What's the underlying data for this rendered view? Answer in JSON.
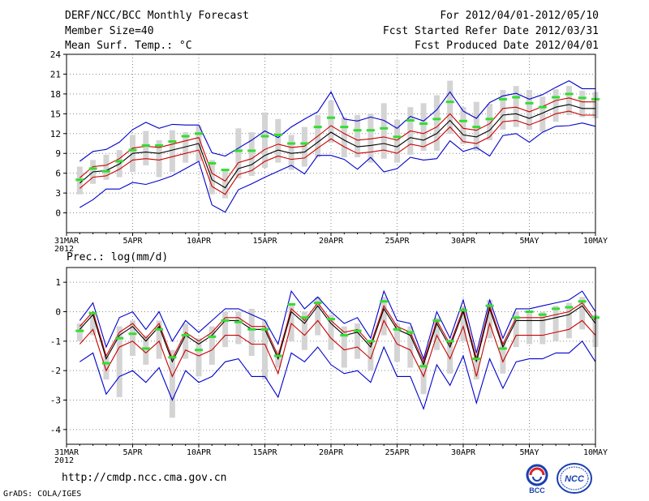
{
  "header": {
    "title": "DERF/NCC/BCC Monthly Forecast",
    "member_size": "Member Size=40",
    "variable": "Mean Surf. Temp.: °C",
    "period": "For 2012/04/01-2012/05/10",
    "started": "Fcst Started Refer Date 2012/03/31",
    "produced": "Fcst Produced Date 2012/04/01"
  },
  "footer": {
    "url": "http://cmdp.ncc.cma.gov.cn",
    "grads": "GrADS: COLA/IGES"
  },
  "logos": {
    "bcc": "BCC",
    "ncc": "NCC"
  },
  "colors": {
    "mean": "#000000",
    "quartile": "#cc0000",
    "extreme": "#0000cc",
    "obs": "#33dd33",
    "spread": "#d4d4d4",
    "grid": "#888888"
  },
  "chart_data": [
    {
      "type": "line",
      "title": "Mean Surf. Temp.: °C",
      "x_ticks": [
        "31MAR",
        "5APR",
        "10APR",
        "15APR",
        "20APR",
        "25APR",
        "30APR",
        "5MAY",
        "10MAY"
      ],
      "x_tick_days": [
        0,
        5,
        10,
        15,
        20,
        25,
        30,
        35,
        40
      ],
      "x_year": "2012",
      "ylim": [
        -3,
        24
      ],
      "yticks": [
        0,
        3,
        6,
        9,
        12,
        15,
        18,
        21,
        24
      ],
      "x": [
        1,
        2,
        3,
        4,
        5,
        6,
        7,
        8,
        9,
        10,
        11,
        12,
        13,
        14,
        15,
        16,
        17,
        18,
        19,
        20,
        21,
        22,
        23,
        24,
        25,
        26,
        27,
        28,
        29,
        30,
        31,
        32,
        33,
        34,
        35,
        36,
        37,
        38,
        39,
        40
      ],
      "series": [
        {
          "name": "mean",
          "values": [
            4.5,
            6.2,
            6.4,
            7.4,
            9.0,
            9.2,
            9.0,
            9.5,
            10.0,
            10.5,
            5.0,
            3.8,
            6.7,
            7.3,
            8.7,
            9.5,
            9.0,
            9.2,
            10.7,
            12.2,
            11.0,
            10.0,
            10.2,
            10.5,
            10.0,
            11.4,
            11.0,
            12.0,
            14.0,
            11.8,
            11.5,
            12.5,
            14.8,
            15.0,
            14.3,
            15.1,
            16.0,
            16.4,
            15.8,
            15.8
          ]
        },
        {
          "name": "upper_quartile",
          "values": [
            5.3,
            7.0,
            7.2,
            8.2,
            9.8,
            10.1,
            9.9,
            10.4,
            10.9,
            11.4,
            6.0,
            4.8,
            7.6,
            8.2,
            9.6,
            10.4,
            9.9,
            10.1,
            11.6,
            13.2,
            12.0,
            11.0,
            11.2,
            11.5,
            11.0,
            12.4,
            12.0,
            13.0,
            15.0,
            12.8,
            12.5,
            13.5,
            15.8,
            16.0,
            15.3,
            16.1,
            17.0,
            17.4,
            16.8,
            16.8
          ]
        },
        {
          "name": "lower_quartile",
          "values": [
            3.7,
            5.4,
            5.6,
            6.6,
            8.0,
            8.2,
            8.0,
            8.5,
            9.0,
            9.5,
            4.0,
            2.8,
            5.8,
            6.4,
            7.8,
            8.6,
            8.1,
            8.3,
            9.8,
            11.2,
            10.0,
            9.0,
            9.2,
            9.5,
            9.0,
            10.4,
            10.0,
            11.0,
            13.0,
            10.8,
            10.5,
            11.5,
            13.8,
            14.0,
            13.3,
            14.1,
            15.0,
            15.4,
            14.8,
            14.8
          ]
        },
        {
          "name": "max",
          "values": [
            7.8,
            9.3,
            9.6,
            10.7,
            12.6,
            13.7,
            12.8,
            13.4,
            13.3,
            13.3,
            9.1,
            8.6,
            9.8,
            11.0,
            12.4,
            11.4,
            13.0,
            14.2,
            15.3,
            18.3,
            14.2,
            13.9,
            14.5,
            14.0,
            12.8,
            14.6,
            13.9,
            15.6,
            18.3,
            15.4,
            14.3,
            16.7,
            17.7,
            18.1,
            17.2,
            17.9,
            19.0,
            20.0,
            18.8,
            18.8
          ]
        },
        {
          "name": "min",
          "values": [
            0.8,
            2.0,
            3.6,
            3.6,
            4.6,
            4.3,
            4.9,
            5.6,
            6.7,
            7.8,
            1.2,
            0.1,
            3.5,
            4.4,
            5.4,
            6.3,
            7.2,
            5.9,
            8.7,
            8.7,
            8.1,
            6.6,
            8.4,
            6.2,
            6.7,
            8.4,
            8.0,
            8.2,
            10.9,
            9.3,
            9.9,
            8.6,
            11.7,
            12.0,
            10.7,
            12.2,
            13.1,
            13.2,
            13.6,
            13.1
          ]
        },
        {
          "name": "observed",
          "values": [
            5.0,
            6.7,
            6.3,
            7.8,
            9.5,
            10.2,
            10.2,
            10.8,
            11.6,
            12.0,
            7.5,
            6.5,
            9.4,
            9.4,
            11.6,
            11.8,
            10.5,
            10.5,
            13.0,
            14.4,
            13.0,
            12.5,
            12.5,
            12.8,
            11.5,
            14.0,
            13.5,
            14.2,
            16.8,
            13.9,
            13.0,
            14.2,
            17.2,
            17.5,
            16.6,
            16.0,
            17.5,
            18.0,
            17.4,
            17.2
          ]
        },
        {
          "name": "spread_top",
          "values": [
            7.0,
            8.0,
            8.8,
            9.5,
            11.8,
            12.4,
            11.0,
            12.5,
            12.2,
            13.2,
            8.0,
            6.4,
            12.8,
            12.2,
            15.2,
            14.2,
            11.8,
            13.0,
            14.8,
            17.0,
            14.5,
            14.8,
            15.0,
            16.6,
            14.1,
            16.0,
            16.6,
            17.8,
            20.0,
            16.0,
            16.8,
            16.5,
            18.6,
            19.2,
            18.6,
            17.6,
            18.7,
            19.2,
            18.5,
            18.3
          ]
        },
        {
          "name": "spread_bottom",
          "values": [
            2.8,
            4.4,
            5.0,
            5.4,
            6.2,
            7.2,
            5.4,
            6.2,
            7.6,
            7.8,
            2.8,
            2.2,
            5.2,
            5.6,
            6.8,
            7.6,
            6.5,
            7.0,
            8.4,
            10.6,
            8.4,
            8.4,
            7.6,
            8.2,
            7.6,
            8.8,
            9.4,
            9.4,
            12.0,
            10.4,
            9.4,
            11.0,
            12.6,
            13.0,
            12.6,
            12.3,
            13.8,
            14.8,
            14.5,
            14.3
          ]
        }
      ]
    },
    {
      "type": "line",
      "title": "Prec.: log(mm/d)",
      "x_ticks": [
        "31MAR",
        "5APR",
        "10APR",
        "15APR",
        "20APR",
        "25APR",
        "30APR",
        "5MAY",
        "10MAY"
      ],
      "x_tick_days": [
        0,
        5,
        10,
        15,
        20,
        25,
        30,
        35,
        40
      ],
      "x_year": "2012",
      "ylim": [
        -4.5,
        1.5
      ],
      "yticks": [
        -4,
        -3,
        -2,
        -1,
        0,
        1
      ],
      "x": [
        1,
        2,
        3,
        4,
        5,
        6,
        7,
        8,
        9,
        10,
        11,
        12,
        13,
        14,
        15,
        16,
        17,
        18,
        19,
        20,
        21,
        22,
        23,
        24,
        25,
        26,
        27,
        28,
        29,
        30,
        31,
        32,
        33,
        34,
        35,
        36,
        37,
        38,
        39,
        40
      ],
      "series": [
        {
          "name": "mean",
          "values": [
            -0.6,
            -0.1,
            -1.6,
            -0.8,
            -0.5,
            -1.0,
            -0.5,
            -1.7,
            -0.8,
            -1.1,
            -0.8,
            -0.3,
            -0.3,
            -0.6,
            -0.6,
            -1.6,
            0.0,
            -0.4,
            0.2,
            -0.4,
            -0.8,
            -0.7,
            -1.2,
            0.1,
            -0.6,
            -0.8,
            -1.8,
            -0.4,
            -1.2,
            0.0,
            -1.7,
            0.1,
            -1.2,
            -0.3,
            -0.3,
            -0.3,
            -0.2,
            -0.1,
            0.2,
            -0.4
          ]
        },
        {
          "name": "upper_quartile",
          "values": [
            -0.5,
            0.0,
            -1.5,
            -0.7,
            -0.4,
            -0.9,
            -0.4,
            -1.6,
            -0.7,
            -1.0,
            -0.7,
            -0.2,
            -0.2,
            -0.5,
            -0.5,
            -1.5,
            0.1,
            -0.3,
            0.3,
            -0.3,
            -0.7,
            -0.6,
            -1.1,
            0.2,
            -0.5,
            -0.7,
            -1.7,
            -0.3,
            -1.1,
            0.1,
            -1.6,
            0.2,
            -1.1,
            -0.2,
            -0.2,
            -0.2,
            -0.1,
            0.0,
            0.3,
            -0.3
          ]
        },
        {
          "name": "lower_quartile",
          "values": [
            -1.1,
            -0.6,
            -2.0,
            -1.2,
            -1.0,
            -1.4,
            -1.0,
            -2.2,
            -1.3,
            -1.5,
            -1.3,
            -0.8,
            -0.8,
            -1.1,
            -1.1,
            -2.1,
            -0.4,
            -0.8,
            -0.3,
            -0.9,
            -1.3,
            -1.2,
            -1.6,
            -0.3,
            -1.1,
            -1.3,
            -2.2,
            -0.8,
            -1.6,
            -0.5,
            -2.2,
            -0.4,
            -1.7,
            -0.8,
            -0.8,
            -0.8,
            -0.7,
            -0.6,
            -0.3,
            -0.8
          ]
        },
        {
          "name": "max",
          "values": [
            -0.3,
            0.3,
            -1.2,
            -0.2,
            0.0,
            -0.6,
            0.0,
            -1.0,
            -0.3,
            -0.7,
            -0.3,
            0.1,
            0.1,
            -0.1,
            -0.3,
            -1.1,
            0.7,
            0.1,
            0.5,
            0.0,
            -0.4,
            -0.2,
            -0.9,
            0.7,
            -0.3,
            -0.4,
            -1.6,
            0.0,
            -0.9,
            0.4,
            -1.4,
            0.4,
            -0.9,
            0.1,
            0.1,
            0.2,
            0.3,
            0.4,
            0.7,
            0.0
          ]
        },
        {
          "name": "min",
          "values": [
            -1.7,
            -1.4,
            -2.8,
            -2.2,
            -2.0,
            -2.4,
            -1.9,
            -3.0,
            -2.0,
            -2.4,
            -2.2,
            -1.7,
            -1.6,
            -2.2,
            -2.2,
            -2.9,
            -1.4,
            -1.7,
            -1.2,
            -1.8,
            -2.1,
            -2.0,
            -2.4,
            -1.2,
            -2.2,
            -2.2,
            -3.3,
            -1.8,
            -2.5,
            -1.5,
            -3.1,
            -1.6,
            -2.6,
            -1.7,
            -1.6,
            -1.6,
            -1.4,
            -1.4,
            -1.0,
            -1.7
          ]
        },
        {
          "name": "observed",
          "values": [
            -0.65,
            -0.05,
            -1.75,
            -0.9,
            -0.75,
            -1.25,
            -0.6,
            -1.55,
            -0.8,
            -1.3,
            -0.85,
            -0.3,
            -0.35,
            -0.6,
            -0.6,
            -1.5,
            0.25,
            -0.2,
            0.3,
            -0.25,
            -0.8,
            -0.65,
            -1.0,
            0.35,
            -0.6,
            -0.7,
            -1.85,
            -0.3,
            -1.0,
            0.05,
            -1.6,
            0.2,
            -1.25,
            -0.2,
            0.0,
            -0.1,
            0.1,
            0.15,
            0.35,
            -0.2
          ]
        },
        {
          "name": "spread_top",
          "values": [
            -0.4,
            0.0,
            -1.5,
            -0.5,
            -0.3,
            -0.8,
            -0.3,
            -1.3,
            -0.4,
            -0.9,
            -0.5,
            0.0,
            0.0,
            0.1,
            -0.3,
            -1.3,
            0.3,
            0.0,
            0.5,
            -0.1,
            -0.5,
            -0.4,
            -1.0,
            0.5,
            -0.4,
            -0.5,
            -1.7,
            -0.2,
            -1.0,
            0.2,
            -1.4,
            0.4,
            -1.0,
            0.0,
            0.0,
            0.0,
            0.2,
            0.3,
            0.5,
            -0.1
          ]
        },
        {
          "name": "spread_bottom",
          "values": [
            -1.0,
            -0.8,
            -2.3,
            -2.9,
            -1.5,
            -1.8,
            -1.6,
            -3.6,
            -1.6,
            -2.2,
            -1.8,
            -1.2,
            -1.1,
            -1.5,
            -2.3,
            -1.9,
            -1.0,
            -1.3,
            -0.8,
            -1.3,
            -1.9,
            -1.6,
            -2.0,
            -0.8,
            -1.7,
            -1.9,
            -2.8,
            -1.3,
            -2.1,
            -1.0,
            -2.3,
            -0.9,
            -2.1,
            -1.2,
            -1.1,
            -1.1,
            -1.0,
            -0.9,
            -0.6,
            -1.2
          ]
        }
      ]
    }
  ]
}
